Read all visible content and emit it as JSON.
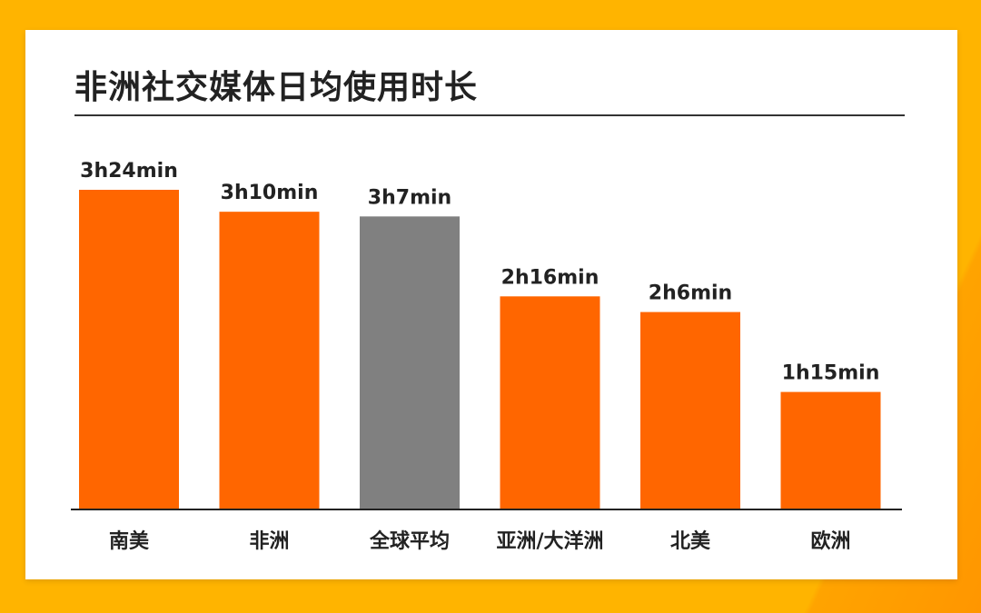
{
  "chart_data": {
    "type": "bar",
    "title": "非洲社交媒体日均使用时长",
    "categories": [
      "南美",
      "非洲",
      "全球平均",
      "亚洲/大洋洲",
      "北美",
      "欧洲"
    ],
    "values": [
      204,
      190,
      187,
      136,
      126,
      75
    ],
    "value_unit": "min",
    "data_labels": [
      "3h24min",
      "3h10min",
      "3h7min",
      "2h16min",
      "2h6min",
      "1h15min"
    ],
    "highlight_category": "全球平均",
    "colors": {
      "bar": "#FF6600",
      "highlight_bar": "#808080",
      "background": "#FFB400",
      "card": "#FFFFFF"
    },
    "grid": false,
    "legend": "none"
  }
}
